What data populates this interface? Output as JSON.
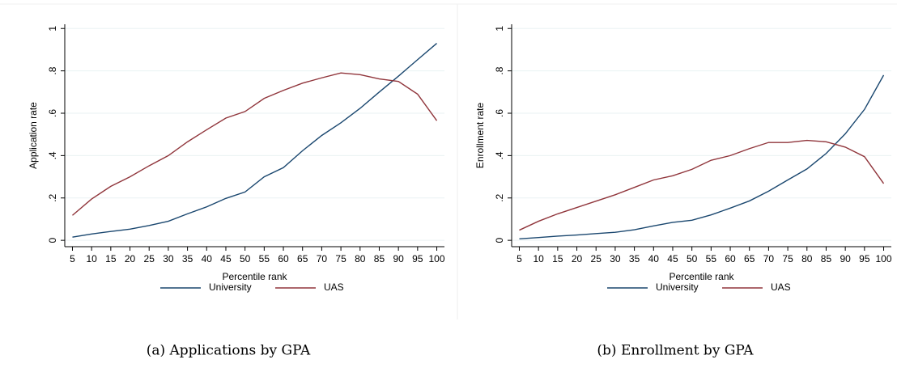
{
  "chart_data": [
    {
      "type": "line",
      "caption": "(a) Applications by GPA",
      "ylabel": "Application rate",
      "xlabel": "Percentile rank",
      "x": [
        5,
        10,
        15,
        20,
        25,
        30,
        35,
        40,
        45,
        50,
        55,
        60,
        65,
        70,
        75,
        80,
        85,
        90,
        95,
        100
      ],
      "series": [
        {
          "name": "University",
          "color": "#1a476f",
          "values": [
            0.015,
            0.03,
            0.042,
            0.053,
            0.07,
            0.09,
            0.125,
            0.158,
            0.198,
            0.228,
            0.3,
            0.343,
            0.423,
            0.495,
            0.555,
            0.623,
            0.7,
            0.775,
            0.853,
            0.93
          ]
        },
        {
          "name": "UAS",
          "color": "#90353b",
          "values": [
            0.118,
            0.195,
            0.255,
            0.3,
            0.352,
            0.4,
            0.465,
            0.522,
            0.577,
            0.608,
            0.67,
            0.708,
            0.742,
            0.767,
            0.79,
            0.782,
            0.762,
            0.75,
            0.69,
            0.565
          ]
        }
      ],
      "xlim": [
        3,
        102
      ],
      "xticks": [
        5,
        10,
        15,
        20,
        25,
        30,
        35,
        40,
        45,
        50,
        55,
        60,
        65,
        70,
        75,
        80,
        85,
        90,
        95,
        100
      ],
      "ylim": [
        -0.03,
        1.02
      ],
      "yticks": [
        0,
        {
          "value": 0.2,
          "label": ".2"
        },
        {
          "value": 0.4,
          "label": ".4"
        },
        {
          "value": 0.6,
          "label": ".6"
        },
        {
          "value": 0.8,
          "label": ".8"
        },
        1
      ],
      "grid": true,
      "legend": "bottom"
    },
    {
      "type": "line",
      "caption": "(b) Enrollment by GPA",
      "ylabel": "Enrollment rate",
      "xlabel": "Percentile rank",
      "x": [
        5,
        10,
        15,
        20,
        25,
        30,
        35,
        40,
        45,
        50,
        55,
        60,
        65,
        70,
        75,
        80,
        85,
        90,
        95,
        100
      ],
      "series": [
        {
          "name": "University",
          "color": "#1a476f",
          "values": [
            0.007,
            0.013,
            0.02,
            0.025,
            0.032,
            0.038,
            0.05,
            0.068,
            0.085,
            0.095,
            0.12,
            0.152,
            0.186,
            0.232,
            0.285,
            0.337,
            0.41,
            0.503,
            0.618,
            0.78
          ]
        },
        {
          "name": "UAS",
          "color": "#90353b",
          "values": [
            0.048,
            0.09,
            0.125,
            0.155,
            0.185,
            0.215,
            0.25,
            0.285,
            0.305,
            0.335,
            0.378,
            0.4,
            0.433,
            0.462,
            0.462,
            0.472,
            0.465,
            0.44,
            0.395,
            0.268
          ]
        }
      ],
      "xlim": [
        3,
        102
      ],
      "xticks": [
        5,
        10,
        15,
        20,
        25,
        30,
        35,
        40,
        45,
        50,
        55,
        60,
        65,
        70,
        75,
        80,
        85,
        90,
        95,
        100
      ],
      "ylim": [
        -0.03,
        1.02
      ],
      "yticks": [
        0,
        {
          "value": 0.2,
          "label": ".2"
        },
        {
          "value": 0.4,
          "label": ".4"
        },
        {
          "value": 0.6,
          "label": ".6"
        },
        {
          "value": 0.8,
          "label": ".8"
        },
        1
      ],
      "grid": true,
      "legend": "bottom"
    }
  ]
}
